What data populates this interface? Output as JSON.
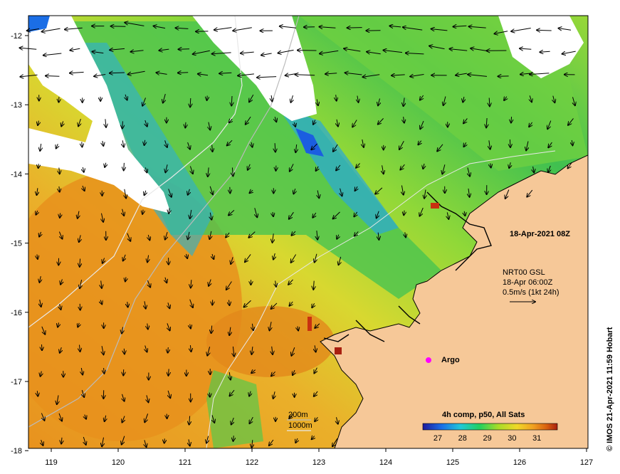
{
  "map": {
    "date_label": "18-Apr-2021 08Z",
    "current_block": {
      "line1": "NRT00 GSL",
      "line2": "18-Apr 06:00Z",
      "line3": "0.5m/s (1kt 24h)"
    },
    "argo_label": "Argo",
    "isobaths": {
      "label_200": "200m",
      "label_1000": "1000m"
    },
    "colorbar": {
      "title": "4h comp, p50, All Sats",
      "ticks": [
        "27",
        "28",
        "29",
        "30",
        "31"
      ],
      "colors": [
        "#1e1a9c",
        "#1b6ee6",
        "#22c8d8",
        "#20d060",
        "#a8dc28",
        "#f0d828",
        "#f0a020",
        "#d86010",
        "#a82010"
      ]
    },
    "credit": "© IMOS 21-Apr-2021 11:59 Hobart",
    "x_ticks": [
      "119",
      "120",
      "121",
      "122",
      "123",
      "124",
      "125",
      "126",
      "127"
    ],
    "y_ticks": [
      "-12",
      "-13",
      "-14",
      "-15",
      "-16",
      "-17",
      "-18"
    ],
    "colors": {
      "land": "#f6c898",
      "cloud": "#ffffff",
      "sst_warm": "#e89a28",
      "sst_mid": "#e8d030",
      "sst_cool": "#40c050",
      "sst_cold": "#28a8d0",
      "argo": "#ff00ff"
    }
  }
}
